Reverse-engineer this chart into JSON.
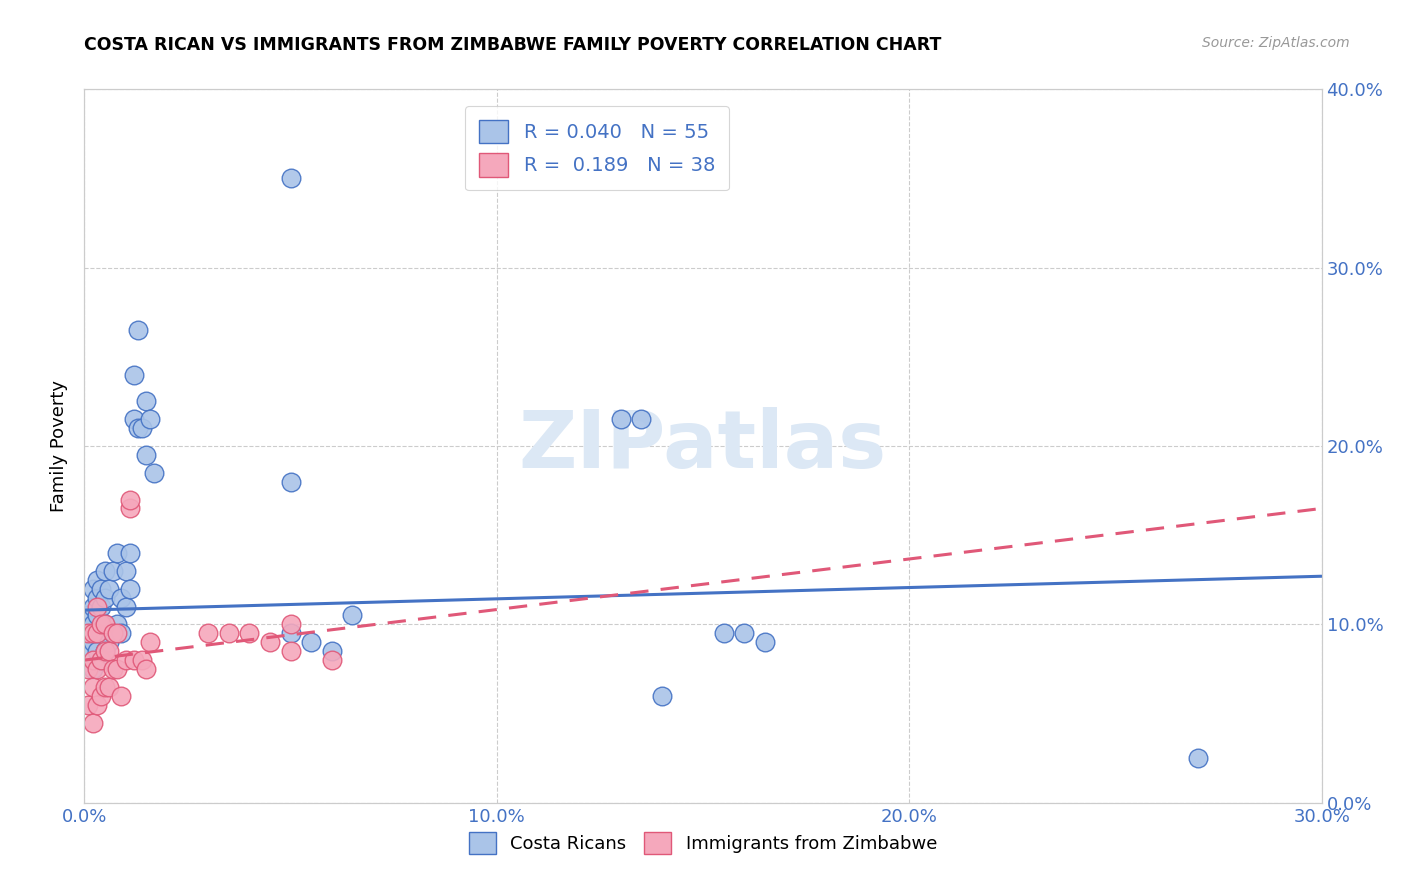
{
  "title": "COSTA RICAN VS IMMIGRANTS FROM ZIMBABWE FAMILY POVERTY CORRELATION CHART",
  "source": "Source: ZipAtlas.com",
  "ylabel": "Family Poverty",
  "xlim": [
    0.0,
    0.3
  ],
  "ylim": [
    0.0,
    0.4
  ],
  "legend_labels": [
    "Costa Ricans",
    "Immigrants from Zimbabwe"
  ],
  "blue_R": "0.040",
  "blue_N": "55",
  "pink_R": "0.189",
  "pink_N": "38",
  "blue_color": "#aac4e8",
  "pink_color": "#f5a8bc",
  "blue_line_color": "#4472c4",
  "pink_line_color": "#e05878",
  "watermark_color": "#dce8f5",
  "blue_trend_x": [
    0.0,
    0.3
  ],
  "blue_trend_y": [
    0.108,
    0.127
  ],
  "pink_trend_x": [
    0.0,
    0.3
  ],
  "pink_trend_y": [
    0.08,
    0.165
  ],
  "blue_points_x": [
    0.001,
    0.001,
    0.001,
    0.002,
    0.002,
    0.002,
    0.002,
    0.002,
    0.003,
    0.003,
    0.003,
    0.003,
    0.003,
    0.004,
    0.004,
    0.004,
    0.004,
    0.005,
    0.005,
    0.005,
    0.005,
    0.006,
    0.006,
    0.007,
    0.007,
    0.008,
    0.008,
    0.009,
    0.009,
    0.01,
    0.01,
    0.011,
    0.011,
    0.012,
    0.012,
    0.013,
    0.013,
    0.014,
    0.015,
    0.015,
    0.016,
    0.017,
    0.05,
    0.055,
    0.06,
    0.065,
    0.13,
    0.135,
    0.155,
    0.16,
    0.165,
    0.05,
    0.14,
    0.27,
    0.05
  ],
  "blue_points_y": [
    0.085,
    0.095,
    0.105,
    0.075,
    0.09,
    0.1,
    0.11,
    0.12,
    0.085,
    0.095,
    0.105,
    0.115,
    0.125,
    0.08,
    0.095,
    0.11,
    0.12,
    0.085,
    0.1,
    0.115,
    0.13,
    0.09,
    0.12,
    0.095,
    0.13,
    0.1,
    0.14,
    0.095,
    0.115,
    0.11,
    0.13,
    0.12,
    0.14,
    0.215,
    0.24,
    0.21,
    0.265,
    0.21,
    0.195,
    0.225,
    0.215,
    0.185,
    0.095,
    0.09,
    0.085,
    0.105,
    0.215,
    0.215,
    0.095,
    0.095,
    0.09,
    0.18,
    0.06,
    0.025,
    0.35
  ],
  "pink_points_x": [
    0.001,
    0.001,
    0.001,
    0.002,
    0.002,
    0.002,
    0.002,
    0.003,
    0.003,
    0.003,
    0.003,
    0.004,
    0.004,
    0.004,
    0.005,
    0.005,
    0.005,
    0.006,
    0.006,
    0.007,
    0.007,
    0.008,
    0.008,
    0.009,
    0.01,
    0.011,
    0.011,
    0.012,
    0.014,
    0.015,
    0.016,
    0.03,
    0.035,
    0.04,
    0.045,
    0.05,
    0.05,
    0.06
  ],
  "pink_points_y": [
    0.055,
    0.075,
    0.095,
    0.045,
    0.065,
    0.08,
    0.095,
    0.055,
    0.075,
    0.095,
    0.11,
    0.06,
    0.08,
    0.1,
    0.065,
    0.085,
    0.1,
    0.065,
    0.085,
    0.075,
    0.095,
    0.075,
    0.095,
    0.06,
    0.08,
    0.165,
    0.17,
    0.08,
    0.08,
    0.075,
    0.09,
    0.095,
    0.095,
    0.095,
    0.09,
    0.085,
    0.1,
    0.08
  ]
}
